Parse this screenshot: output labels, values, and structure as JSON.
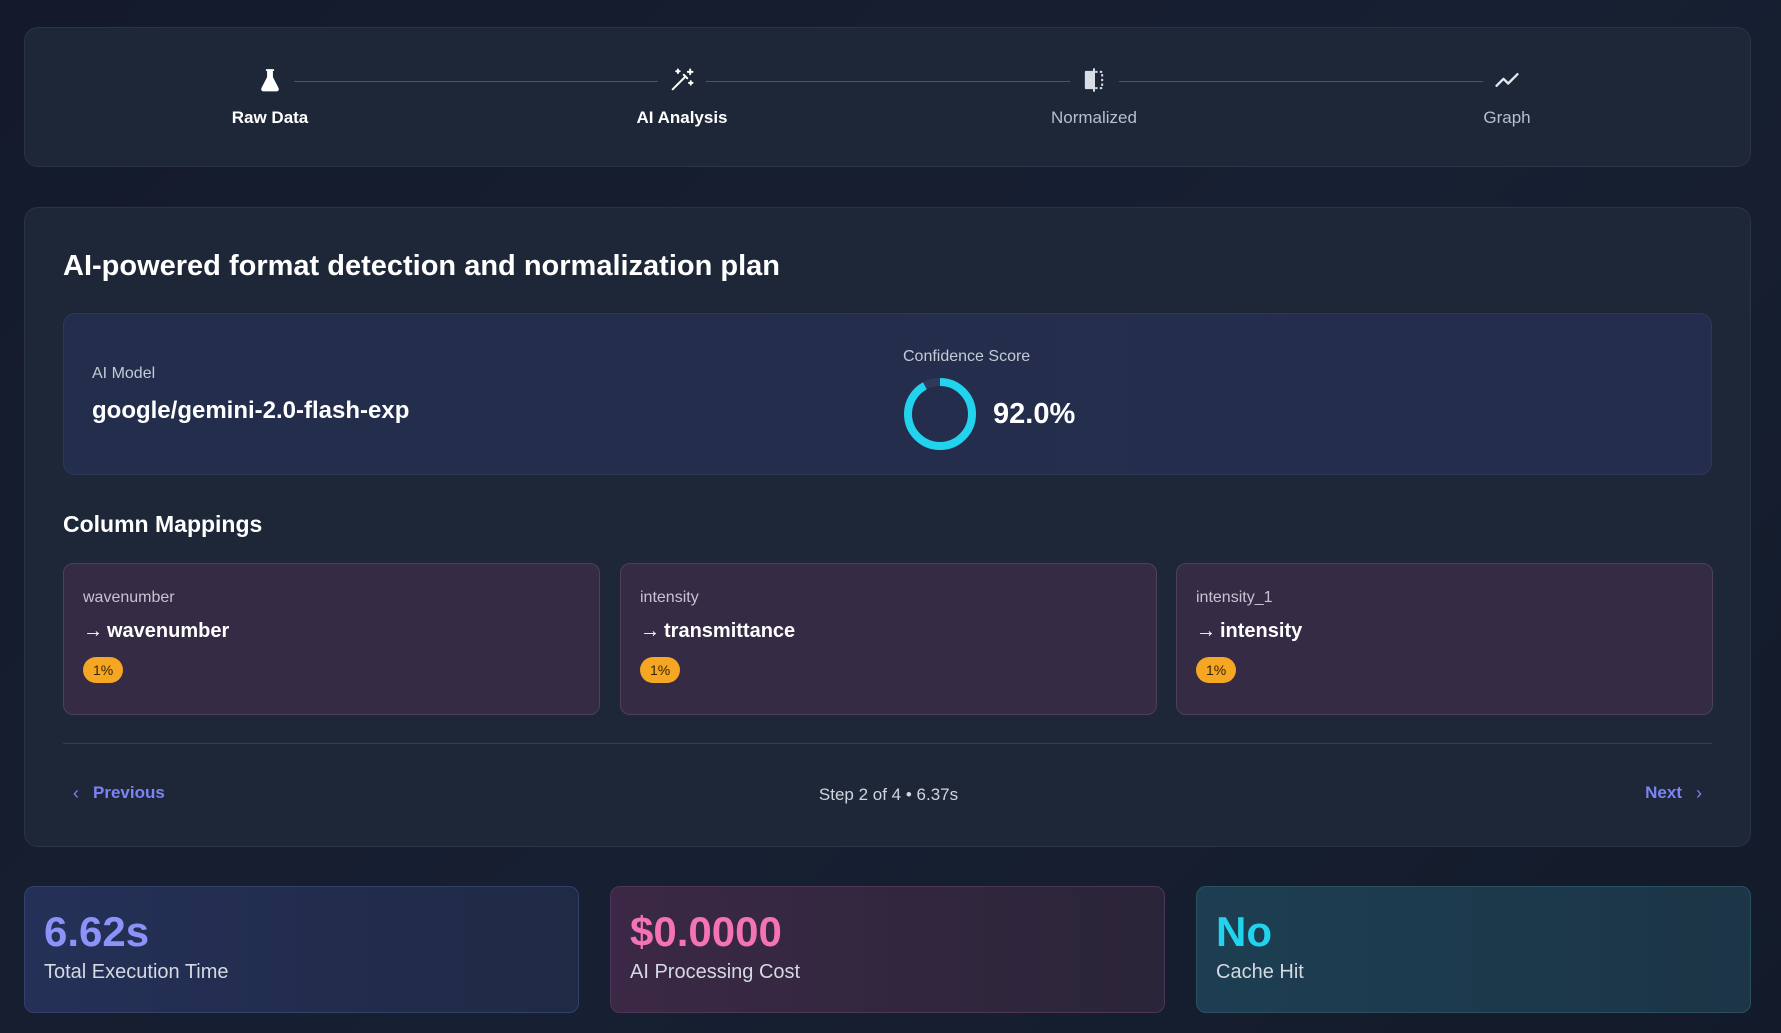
{
  "steps": [
    {
      "label": "Raw Data",
      "icon": "flask-icon",
      "state": "done"
    },
    {
      "label": "AI Analysis",
      "icon": "magic-wand-icon",
      "state": "done"
    },
    {
      "label": "Normalized",
      "icon": "compare-icon",
      "state": "todo"
    },
    {
      "label": "Graph",
      "icon": "trend-line-icon",
      "state": "todo"
    }
  ],
  "analysis": {
    "title": "AI-powered format detection and normalization plan",
    "model_label": "AI Model",
    "model_value": "google/gemini-2.0-flash-exp",
    "confidence_label": "Confidence Score",
    "confidence_value": "92.0%",
    "confidence_fraction": 0.92,
    "ring_color": "#22d3ee"
  },
  "mappings": {
    "title": "Column Mappings",
    "items": [
      {
        "source": "wavenumber",
        "target": "wavenumber",
        "badge": "1%"
      },
      {
        "source": "intensity",
        "target": "transmittance",
        "badge": "1%"
      },
      {
        "source": "intensity_1",
        "target": "intensity",
        "badge": "1%"
      }
    ]
  },
  "navigation": {
    "previous_label": "Previous",
    "next_label": "Next",
    "step_text": "Step 2 of 4 • 6.37s"
  },
  "stats": [
    {
      "value": "6.62s",
      "label": "Total Execution Time"
    },
    {
      "value": "$0.0000",
      "label": "AI Processing Cost"
    },
    {
      "value": "No",
      "label": "Cache Hit"
    }
  ]
}
